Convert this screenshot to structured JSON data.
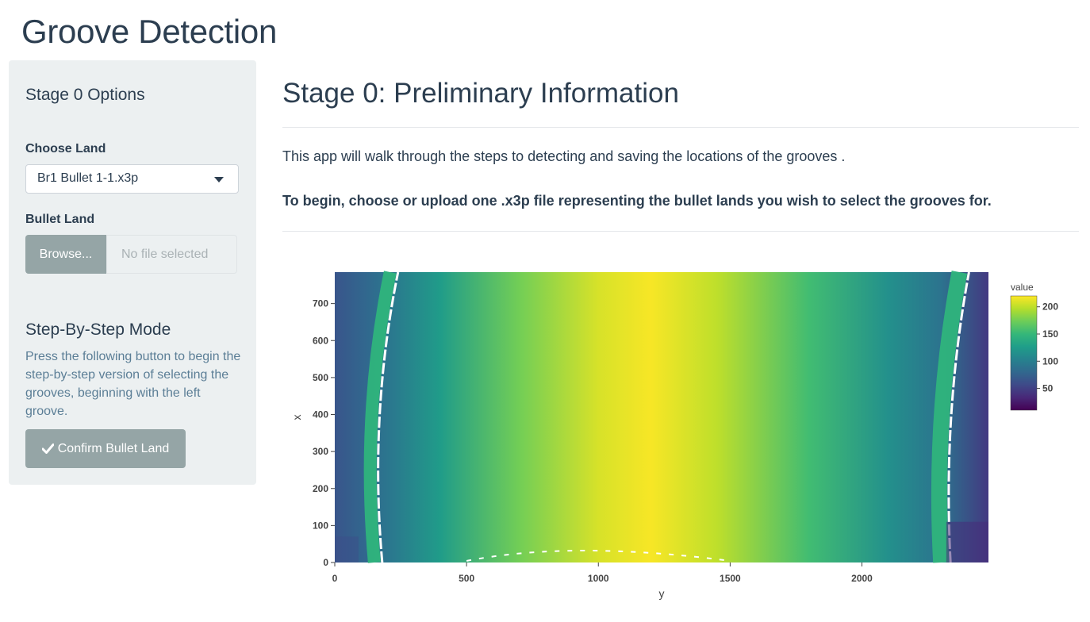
{
  "app": {
    "title": "Groove Detection"
  },
  "sidebar": {
    "heading": "Stage 0 Options",
    "choose_land": {
      "label": "Choose Land",
      "selected": "Br1 Bullet 1-1.x3p"
    },
    "bullet_land": {
      "label": "Bullet Land",
      "browse_label": "Browse...",
      "file_placeholder": "No file selected"
    },
    "step_mode": {
      "heading": "Step-By-Step Mode",
      "help": "Press the following button to begin the step-by-step version of selecting the grooves, beginning with the left groove.",
      "confirm_label": "Confirm Bullet Land",
      "confirm_icon": "check-icon"
    }
  },
  "main": {
    "title": "Stage 0: Preliminary Information",
    "intro": "This app will walk through the steps to detecting and saving the locations of the grooves .",
    "instruction": "To begin, choose or upload one .x3p file representing the bullet lands you wish to select the grooves for."
  },
  "chart_data": {
    "type": "heatmap",
    "xlabel": "y",
    "ylabel": "x",
    "xlim": [
      0,
      2480
    ],
    "ylim": [
      0,
      785
    ],
    "x_ticks": [
      0,
      500,
      1000,
      1500,
      2000
    ],
    "y_ticks": [
      0,
      100,
      200,
      300,
      400,
      500,
      600,
      700
    ],
    "colorbar": {
      "title": "value",
      "ticks": [
        50,
        100,
        150,
        200
      ],
      "range": [
        10,
        220
      ],
      "colorscale": "viridis"
    },
    "value_profile_by_y": [
      {
        "y": 0,
        "value": 65
      },
      {
        "y": 120,
        "value": 80
      },
      {
        "y": 220,
        "value": 95
      },
      {
        "y": 400,
        "value": 125
      },
      {
        "y": 700,
        "value": 175
      },
      {
        "y": 1000,
        "value": 208
      },
      {
        "y": 1200,
        "value": 218
      },
      {
        "y": 1450,
        "value": 200
      },
      {
        "y": 1800,
        "value": 155
      },
      {
        "y": 2100,
        "value": 115
      },
      {
        "y": 2300,
        "value": 90
      },
      {
        "y": 2480,
        "value": 45
      }
    ]
  }
}
